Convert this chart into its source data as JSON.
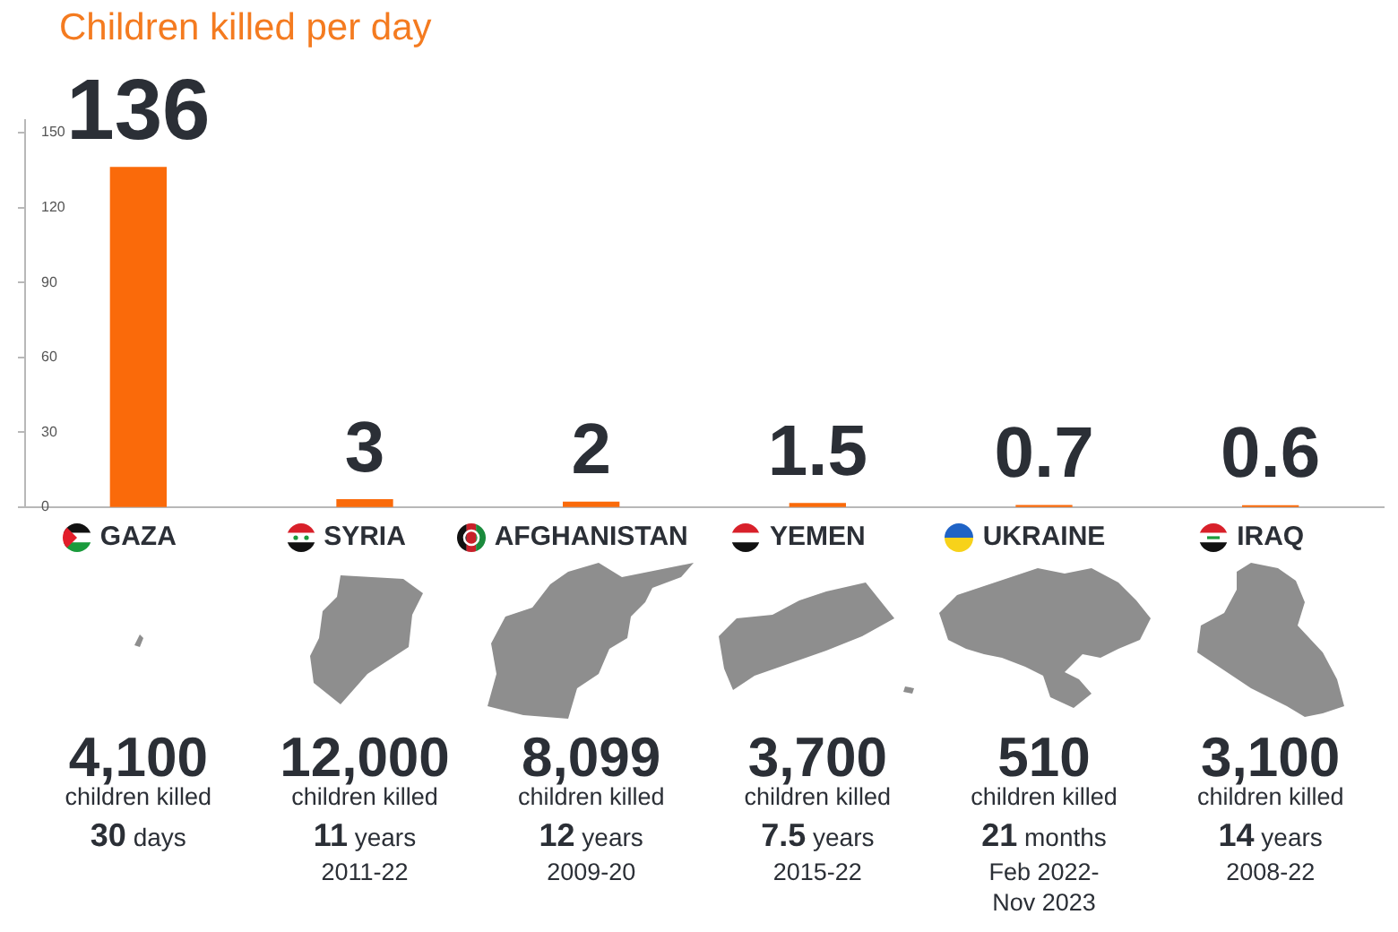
{
  "chart_data": {
    "type": "bar",
    "title": "Children killed per day",
    "categories": [
      "GAZA",
      "SYRIA",
      "AFGHANISTAN",
      "YEMEN",
      "UKRAINE",
      "IRAQ"
    ],
    "values": [
      136,
      3,
      2,
      1.5,
      0.7,
      0.6
    ],
    "color": "#fa6a0a",
    "ylim": [
      0,
      155
    ],
    "yticks": [
      0,
      30,
      60,
      90,
      120,
      150
    ],
    "data_labels": true,
    "annotations": [
      "4,100\nchildren killed\n30 days",
      "12,000\nchildren killed\n11 years\n2011-22",
      "8,099\nchildren killed\n12 years\n2009-20",
      "3,700\nchildren killed\n7.5 years\n2015-22",
      "510\nchildren killed\n21 months\nFeb 2022-\nNov 2023",
      "3,100\nchildren killed\n14 years\n2008-22"
    ]
  }
}
